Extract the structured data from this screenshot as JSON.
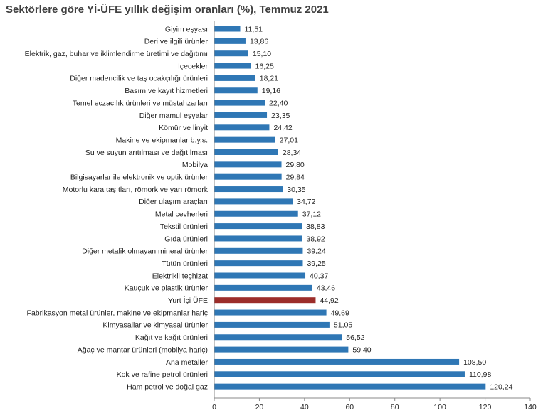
{
  "chart_data": {
    "type": "bar",
    "orientation": "horizontal",
    "title": "Sektörlere göre Yİ-ÜFE yıllık değişim oranları (%), Temmuz 2021",
    "xlim": [
      0,
      140
    ],
    "ticks": [
      "0",
      "20",
      "40",
      "60",
      "80",
      "100",
      "120",
      "140"
    ],
    "tick_values": [
      0,
      20,
      40,
      60,
      80,
      100,
      120,
      140
    ],
    "grid": false,
    "bar_color": "#2f77b5",
    "highlight_color": "#9c2d2a",
    "highlight_category": "Yurt İçi ÜFE",
    "categories": [
      "Giyim eşyası",
      "Deri ve ilgili ürünler",
      "Elektrik, gaz, buhar ve iklimlendirme üretimi ve dağıtımı",
      "İçecekler",
      "Diğer madencilik ve taş ocakçılığı ürünleri",
      "Basım ve kayıt hizmetleri",
      "Temel eczacılık ürünleri ve müstahzarları",
      "Diğer mamul eşyalar",
      "Kömür ve linyit",
      "Makine ve ekipmanlar b.y.s.",
      "Su ve suyun arıtılması ve dağıtılması",
      "Mobilya",
      "Bilgisayarlar ile elektronik ve optik ürünler",
      "Motorlu kara taşıtları, römork ve yarı römork",
      "Diğer ulaşım araçları",
      "Metal cevherleri",
      "Tekstil ürünleri",
      "Gıda ürünleri",
      "Diğer metalik olmayan mineral ürünler",
      "Tütün ürünleri",
      "Elektrikli teçhizat",
      "Kauçuk ve plastik ürünler",
      "Yurt İçi ÜFE",
      "Fabrikasyon metal ürünler, makine ve ekipmanlar hariç",
      "Kimyasallar ve kimyasal ürünler",
      "Kağıt ve kağıt ürünleri",
      "Ağaç ve mantar ürünleri (mobilya hariç)",
      "Ana metaller",
      "Kok ve rafine petrol ürünleri",
      "Ham petrol ve doğal gaz"
    ],
    "values": [
      11.51,
      13.86,
      15.1,
      16.25,
      18.21,
      19.16,
      22.4,
      23.35,
      24.42,
      27.01,
      28.34,
      29.8,
      29.84,
      30.35,
      34.72,
      37.12,
      38.83,
      38.92,
      39.24,
      39.25,
      40.37,
      43.46,
      44.92,
      49.69,
      51.05,
      56.52,
      59.4,
      108.5,
      110.98,
      120.24
    ],
    "value_labels": [
      "11,51",
      "13,86",
      "15,10",
      "16,25",
      "18,21",
      "19,16",
      "22,40",
      "23,35",
      "24,42",
      "27,01",
      "28,34",
      "29,80",
      "29,84",
      "30,35",
      "34,72",
      "37,12",
      "38,83",
      "38,92",
      "39,24",
      "39,25",
      "40,37",
      "43,46",
      "44,92",
      "49,69",
      "51,05",
      "56,52",
      "59,40",
      "108,50",
      "110,98",
      "120,24"
    ]
  }
}
